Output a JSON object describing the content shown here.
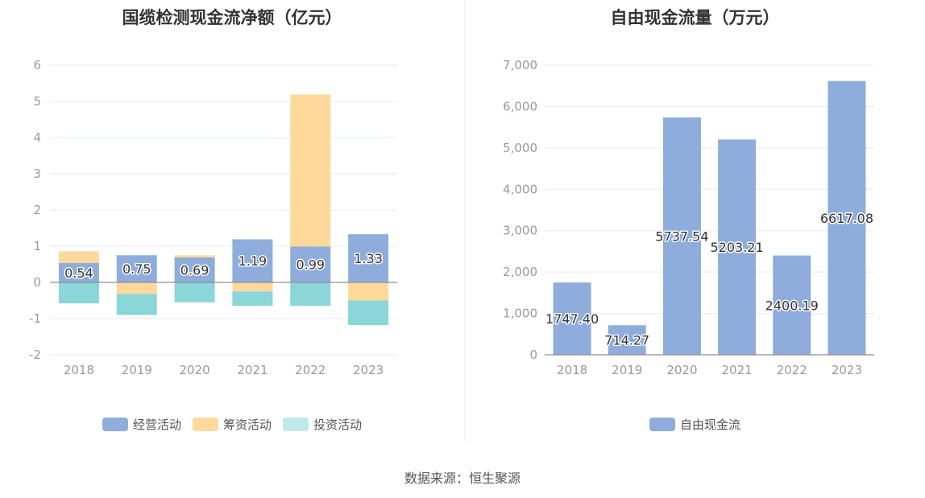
{
  "colors": {
    "operating": "#8eaddc",
    "financing": "#ffd99b",
    "investing": "#8ad6d8",
    "investing_legend": "#bfe9ea",
    "fcf": "#8eaddc"
  },
  "source_text": "数据来源：恒生聚源",
  "chart_data": [
    {
      "type": "bar",
      "stacked": true,
      "title": "国缆检测现金流净额（亿元）",
      "categories": [
        "2018",
        "2019",
        "2020",
        "2021",
        "2022",
        "2023"
      ],
      "ylim": [
        -2,
        6
      ],
      "yticks": [
        "6",
        "5",
        "4",
        "3",
        "2",
        "1",
        "0",
        "-1",
        "-2"
      ],
      "series": [
        {
          "name": "经营活动",
          "values": [
            0.54,
            0.75,
            0.69,
            1.19,
            0.99,
            1.33
          ]
        },
        {
          "name": "筹资活动",
          "values": [
            0.32,
            -0.32,
            0.06,
            -0.25,
            4.2,
            -0.5
          ]
        },
        {
          "name": "投资活动",
          "values": [
            -0.58,
            -0.58,
            -0.55,
            -0.4,
            -0.65,
            -0.68
          ]
        }
      ],
      "labels": [
        "0.54",
        "0.75",
        "0.69",
        "1.19",
        "0.99",
        "1.33"
      ],
      "legend": [
        "经营活动",
        "筹资活动",
        "投资活动"
      ],
      "legend_position": "bottom"
    },
    {
      "type": "bar",
      "title": "自由现金流量（万元）",
      "categories": [
        "2018",
        "2019",
        "2020",
        "2021",
        "2022",
        "2023"
      ],
      "ylim": [
        0,
        7000
      ],
      "yticks": [
        "7,000",
        "6,000",
        "5,000",
        "4,000",
        "3,000",
        "2,000",
        "1,000",
        "0"
      ],
      "series": [
        {
          "name": "自由现金流",
          "values": [
            1747.4,
            714.27,
            5737.54,
            5203.21,
            2400.19,
            6617.08
          ]
        }
      ],
      "labels": [
        "1747.40",
        "714.27",
        "5737.54",
        "5203.21",
        "2400.19",
        "6617.08"
      ],
      "legend": [
        "自由现金流"
      ],
      "legend_position": "bottom"
    }
  ]
}
